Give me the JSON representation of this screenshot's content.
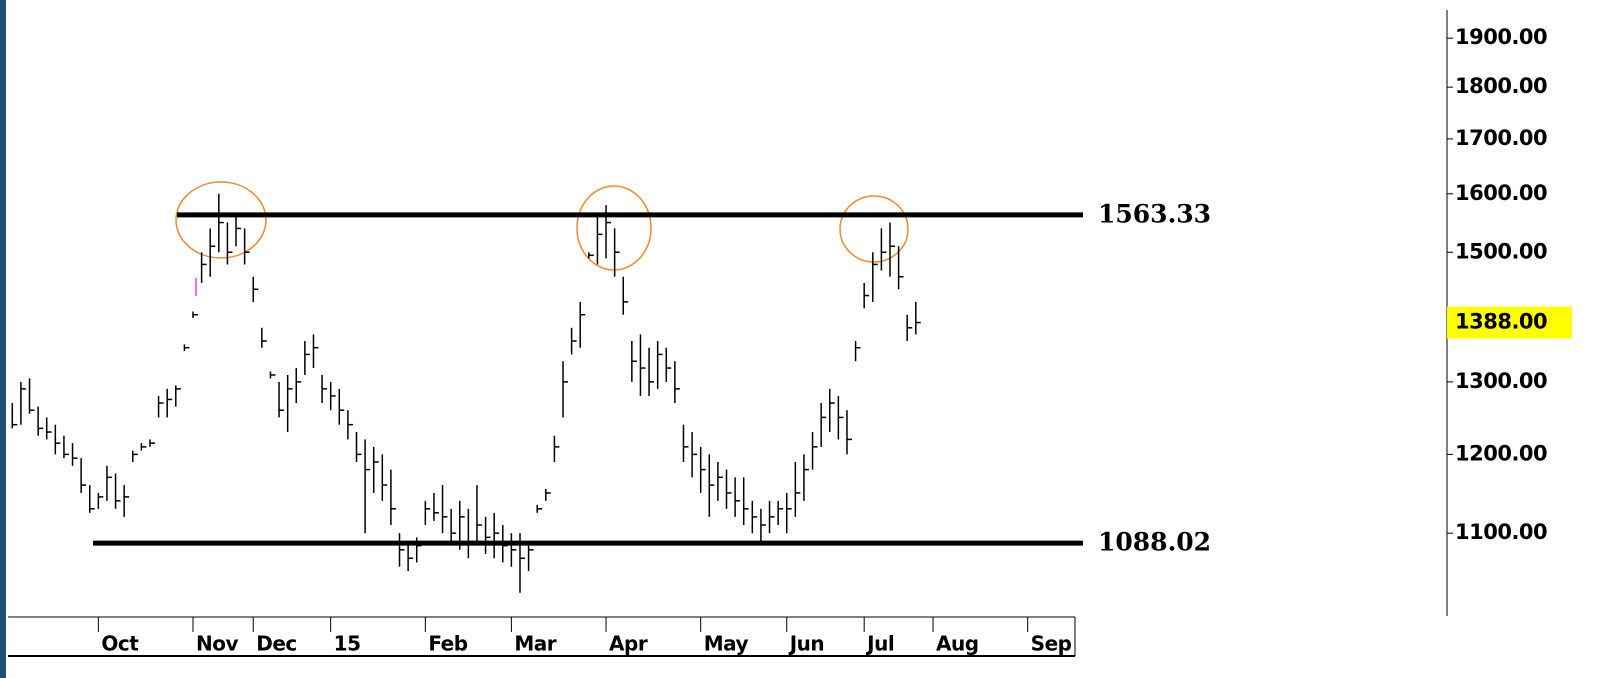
{
  "chart_data": {
    "type": "ohlc",
    "categories": [
      null,
      null,
      null,
      null,
      null,
      null,
      null,
      null,
      null,
      null,
      "Oct",
      null,
      null,
      null,
      null,
      null,
      null,
      null,
      null,
      null,
      null,
      "Nov",
      null,
      null,
      null,
      null,
      null,
      null,
      "Dec",
      null,
      null,
      null,
      null,
      null,
      null,
      null,
      null,
      "15",
      null,
      null,
      null,
      null,
      null,
      null,
      null,
      null,
      null,
      null,
      "Feb",
      null,
      null,
      null,
      null,
      null,
      null,
      null,
      null,
      null,
      "Mar",
      null,
      null,
      null,
      null,
      null,
      null,
      null,
      null,
      null,
      null,
      "Apr",
      null,
      null,
      null,
      null,
      null,
      null,
      null,
      null,
      null,
      null,
      "May",
      null,
      null,
      null,
      null,
      null,
      null,
      null,
      null,
      null,
      "Jun",
      null,
      null,
      null,
      null,
      null,
      null,
      null,
      null,
      "Jul",
      null,
      null,
      null,
      null,
      null,
      null,
      null,
      "Aug",
      null,
      null,
      null,
      null,
      null,
      null,
      null,
      null,
      null,
      null,
      "Sep",
      null,
      null,
      null,
      null,
      null
    ],
    "high": [
      1270,
      1300,
      1305,
      1265,
      1250,
      1240,
      1225,
      1215,
      1195,
      1160,
      1150,
      1185,
      1175,
      1160,
      1205,
      1215,
      1220,
      1280,
      1290,
      1295,
      1355,
      1405,
      1500,
      1540,
      1600,
      1550,
      1560,
      1540,
      1460,
      1380,
      1315,
      1300,
      1310,
      1320,
      1360,
      1370,
      1310,
      1300,
      1290,
      1260,
      1230,
      1220,
      1210,
      1200,
      1180,
      1100,
      1090,
      1095,
      1140,
      1150,
      1160,
      1130,
      1140,
      1130,
      1160,
      1120,
      1125,
      1110,
      1100,
      1100,
      1090,
      1135,
      1155,
      1225,
      1330,
      1380,
      1420,
      1500,
      1560,
      1580,
      1540,
      1460,
      1360,
      1370,
      1350,
      1360,
      1350,
      1330,
      1240,
      1230,
      1210,
      1200,
      1190,
      1180,
      1170,
      1170,
      1140,
      1130,
      1140,
      1140,
      1150,
      1190,
      1200,
      1230,
      1270,
      1290,
      1280,
      1260,
      1360,
      1450,
      1500,
      1540,
      1550,
      1510,
      1400,
      1420,
      null,
      null,
      null,
      null,
      null,
      null,
      null,
      null,
      null,
      null,
      null,
      null,
      null,
      null,
      null,
      null,
      null,
      null
    ],
    "low": [
      1235,
      1240,
      1255,
      1225,
      1220,
      1200,
      1195,
      1185,
      1150,
      1125,
      1130,
      1140,
      1130,
      1120,
      1190,
      1205,
      1210,
      1250,
      1250,
      1265,
      1345,
      1395,
      1450,
      1460,
      1500,
      1480,
      1510,
      1480,
      1420,
      1350,
      1305,
      1250,
      1230,
      1270,
      1310,
      1320,
      1270,
      1260,
      1240,
      1220,
      1190,
      1100,
      1150,
      1140,
      1110,
      1060,
      1055,
      1065,
      1110,
      1115,
      1100,
      1090,
      1080,
      1070,
      1090,
      1075,
      1070,
      1065,
      1060,
      1030,
      1055,
      1125,
      1140,
      1190,
      1250,
      1340,
      1350,
      1490,
      1480,
      1490,
      1460,
      1400,
      1300,
      1280,
      1280,
      1290,
      1300,
      1270,
      1190,
      1170,
      1150,
      1120,
      1140,
      1130,
      1120,
      1110,
      1100,
      1088,
      1100,
      1110,
      1100,
      1120,
      1140,
      1180,
      1210,
      1230,
      1220,
      1200,
      1330,
      1410,
      1420,
      1470,
      1460,
      1440,
      1360,
      1370,
      null,
      null,
      null,
      null,
      null,
      null,
      null,
      null,
      null,
      null,
      null,
      null,
      null,
      null,
      null,
      null,
      null,
      null
    ],
    "close": [
      1240,
      1290,
      1260,
      1235,
      1230,
      1215,
      1200,
      1195,
      1160,
      1130,
      1145,
      1170,
      1140,
      1145,
      1200,
      1210,
      1215,
      1270,
      1275,
      1290,
      1350,
      1400,
      1480,
      1510,
      1550,
      1500,
      1540,
      1500,
      1440,
      1360,
      1310,
      1260,
      1290,
      1300,
      1340,
      1350,
      1290,
      1280,
      1260,
      1240,
      1200,
      1180,
      1190,
      1160,
      1130,
      1080,
      1070,
      1085,
      1130,
      1125,
      1120,
      1100,
      1120,
      1090,
      1110,
      1095,
      1100,
      1085,
      1080,
      1070,
      1080,
      1130,
      1150,
      1210,
      1300,
      1360,
      1400,
      1495,
      1530,
      1550,
      1500,
      1420,
      1330,
      1320,
      1300,
      1340,
      1320,
      1290,
      1210,
      1200,
      1180,
      1160,
      1170,
      1150,
      1140,
      1130,
      1120,
      1110,
      1120,
      1130,
      1130,
      1150,
      1180,
      1210,
      1250,
      1270,
      1250,
      1220,
      1350,
      1430,
      1480,
      1500,
      1510,
      1460,
      1380,
      1388,
      null,
      null,
      null,
      null,
      null,
      null,
      null,
      null,
      null,
      null,
      null,
      null,
      null,
      null,
      null,
      null,
      null,
      null
    ],
    "log_scale": true,
    "ylim": [
      1005,
      1960
    ],
    "yticks": [
      {
        "value": 1100,
        "label": "1100.00"
      },
      {
        "value": 1200,
        "label": "1200.00"
      },
      {
        "value": 1300,
        "label": "1300.00"
      },
      {
        "value": 1500,
        "label": "1500.00"
      },
      {
        "value": 1600,
        "label": "1600.00"
      },
      {
        "value": 1700,
        "label": "1700.00"
      },
      {
        "value": 1800,
        "label": "1800.00"
      },
      {
        "value": 1900,
        "label": "1900.00"
      }
    ],
    "current_price": {
      "value": 1388,
      "label": "1388.00"
    },
    "levels": [
      1563.33,
      1088.02
    ],
    "color": "#000000",
    "level_color": "#000000",
    "highlight_color": "#ffff00"
  }
}
